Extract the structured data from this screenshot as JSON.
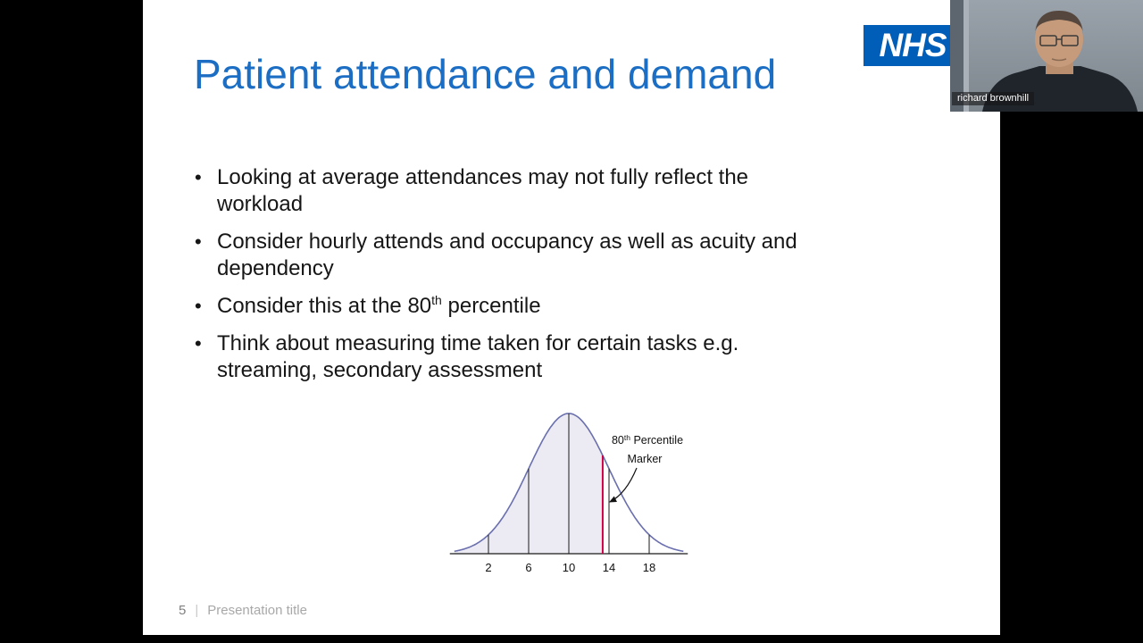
{
  "slide": {
    "title": "Patient attendance and demand",
    "logo_text": "NHS",
    "bullet_char": "•",
    "bullets": [
      {
        "text": "Looking at average attendances may not fully reflect the\nworkload"
      },
      {
        "text": "Consider hourly attends and occupancy as well as acuity and\ndependency"
      },
      {
        "pre": "Consider this at the 80",
        "sup": "th",
        "post": " percentile"
      },
      {
        "text": "Think about measuring time taken for certain tasks e.g.\nstreaming, secondary assessment"
      }
    ],
    "footer": {
      "page_number": "5",
      "separator": "|",
      "title": "Presentation title"
    },
    "colors": {
      "title_blue": "#1b6ec3",
      "nhs_blue": "#005EB8"
    }
  },
  "webcam": {
    "name_label": "richard brownhill"
  },
  "chart_data": {
    "type": "area",
    "title": "",
    "description": "Normal distribution curve of attendances, shaded up to the 80th percentile",
    "x_ticks": [
      2,
      6,
      10,
      14,
      18
    ],
    "distribution": {
      "shape": "normal",
      "mean": 10,
      "sd": 4
    },
    "xlim": [
      -1.4,
      21.4
    ],
    "percentile_marker": {
      "percentile": 80,
      "x_value": 13.37
    },
    "annotation": {
      "line1_base": "80",
      "line1_sup": "th",
      "line1_rest": " Percentile",
      "line2": "Marker"
    },
    "colors": {
      "curve": "#6a6fae",
      "fill": "#eceaf3",
      "marker": "#cc0044",
      "axis": "#1a1a1a"
    },
    "legend": "none",
    "grid": false
  }
}
